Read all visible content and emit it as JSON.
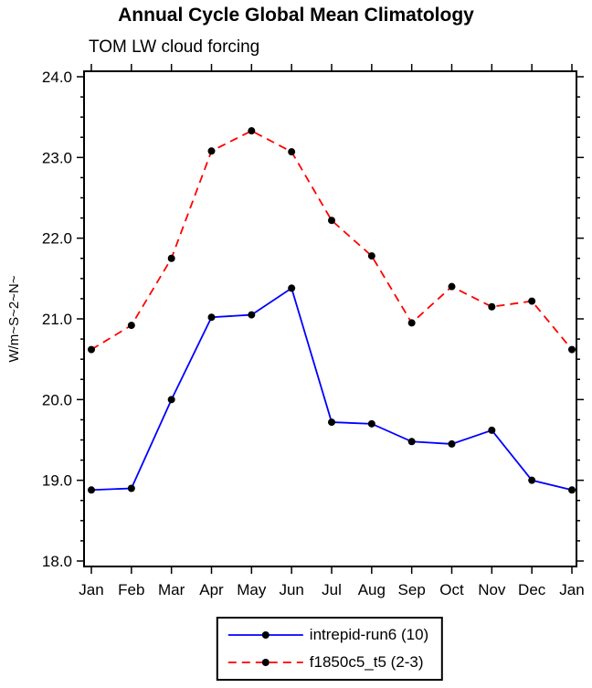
{
  "chart_data": {
    "type": "line",
    "title": "Annual Cycle Global Mean Climatology",
    "subtitle": "TOM LW cloud forcing",
    "ylabel": "W/m~S~2~N~",
    "ylim": [
      18.0,
      24.0
    ],
    "y_major_ticks": [
      18.0,
      19.0,
      20.0,
      21.0,
      22.0,
      23.0,
      24.0
    ],
    "y_minor_step": 0.25,
    "categories": [
      "Jan",
      "Feb",
      "Mar",
      "Apr",
      "May",
      "Jun",
      "Jul",
      "Aug",
      "Sep",
      "Oct",
      "Nov",
      "Dec",
      "Jan"
    ],
    "grid": false,
    "legend_position": "bottom-center",
    "axis_color": "#000000",
    "series": [
      {
        "name": "intrepid-run6 (10)",
        "line_color": "#0000ff",
        "line_style": "solid",
        "marker": "filled-circle",
        "marker_color": "#000000",
        "values": [
          18.88,
          18.9,
          20.0,
          21.02,
          21.05,
          21.38,
          19.72,
          19.7,
          19.48,
          19.45,
          19.62,
          19.0,
          18.88
        ]
      },
      {
        "name": "f1850c5_t5 (2-3)",
        "line_color": "#ff0000",
        "line_style": "dashed",
        "marker": "filled-circle",
        "marker_color": "#000000",
        "values": [
          20.62,
          20.92,
          21.75,
          23.08,
          23.33,
          23.07,
          22.22,
          21.78,
          20.95,
          21.4,
          21.15,
          21.22,
          20.62
        ]
      }
    ]
  }
}
